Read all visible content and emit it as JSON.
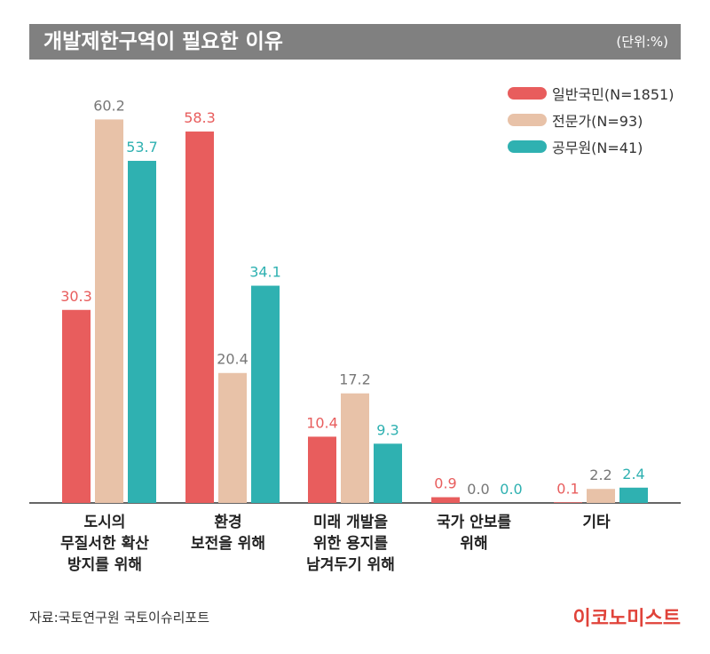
{
  "header": {
    "title": "개발제한구역이 필요한 이유",
    "unit": "(단위:%)"
  },
  "chart_data": {
    "type": "bar",
    "categories": [
      "도시의\n무질서한 확산\n방지를 위해",
      "환경\n보전을 위해",
      "미래 개발을\n위한 용지를\n남겨두기 위해",
      "국가 안보를\n위해",
      "기타"
    ],
    "series": [
      {
        "name": "일반국민(N=1851)",
        "values": [
          30.3,
          58.3,
          10.4,
          0.9,
          0.1
        ],
        "color": "#e85d5d"
      },
      {
        "name": "전문가(N=93)",
        "values": [
          60.2,
          20.4,
          17.2,
          0.0,
          2.2
        ],
        "color": "#e8c2a8"
      },
      {
        "name": "공무원(N=41)",
        "values": [
          53.7,
          34.1,
          9.3,
          0.0,
          2.4
        ],
        "color": "#2fb1b1"
      }
    ],
    "value_labels": [
      [
        "30.3",
        "58.3",
        "10.4",
        "0.9",
        "0.1"
      ],
      [
        "60.2",
        "20.4",
        "17.2",
        "0.0",
        "2.2"
      ],
      [
        "53.7",
        "34.1",
        "9.3",
        "0.0",
        "2.4"
      ]
    ],
    "value_label_colors": [
      "#e85d5d",
      "#777777",
      "#2fb1b1"
    ],
    "ylim": [
      0,
      65
    ],
    "grid": false,
    "legend": "top-right"
  },
  "footer": {
    "source": "자료:국토연구원 국토이슈리포트",
    "brand": "이코노미스트"
  }
}
